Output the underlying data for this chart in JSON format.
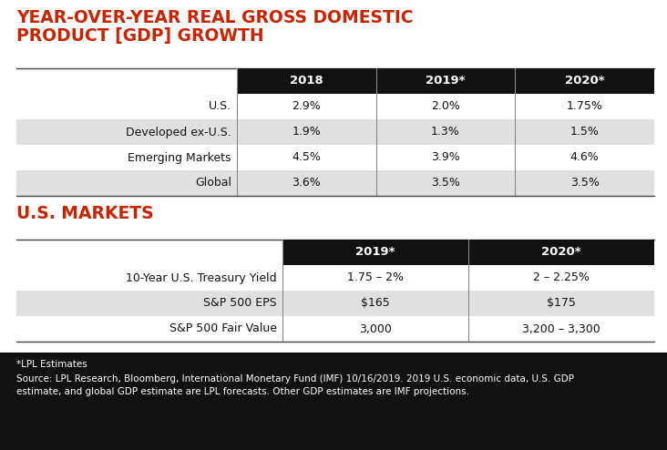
{
  "title1_line1": "YEAR-OVER-YEAR REAL GROSS DOMESTIC",
  "title1_line2": "PRODUCT [GDP] GROWTH",
  "title2": "U.S. MARKETS",
  "title_color": "#cc2200",
  "gdp_headers": [
    "2018",
    "2019*",
    "2020*"
  ],
  "gdp_rows": [
    [
      "U.S.",
      "2.9%",
      "2.0%",
      "1.75%"
    ],
    [
      "Developed ex-U.S.",
      "1.9%",
      "1.3%",
      "1.5%"
    ],
    [
      "Emerging Markets",
      "4.5%",
      "3.9%",
      "4.6%"
    ],
    [
      "Global",
      "3.6%",
      "3.5%",
      "3.5%"
    ]
  ],
  "markets_headers": [
    "2019*",
    "2020*"
  ],
  "markets_rows": [
    [
      "10-Year U.S. Treasury Yield",
      "1.75 – 2%",
      "2 – 2.25%"
    ],
    [
      "S&P 500 EPS",
      "$165",
      "$175"
    ],
    [
      "S&P 500 Fair Value",
      "3,000",
      "3,200 – 3,300"
    ]
  ],
  "header_bg": "#111111",
  "header_fg": "#ffffff",
  "row_bg_even": "#ffffff",
  "row_bg_odd": "#e0e0e0",
  "footnote1": "*LPL Estimates",
  "footnote2": "Source: LPL Research, Bloomberg, International Monetary Fund (IMF) 10/16/2019. 2019 U.S. economic data, U.S. GDP\nestimate, and global GDP estimate are LPL forecasts. Other GDP estimates are IMF projections.",
  "footnote_bg": "#111111",
  "footnote_fg": "#ffffff",
  "table_bg": "#ffffff",
  "border_color": "#888888",
  "top_border_color": "#444444"
}
